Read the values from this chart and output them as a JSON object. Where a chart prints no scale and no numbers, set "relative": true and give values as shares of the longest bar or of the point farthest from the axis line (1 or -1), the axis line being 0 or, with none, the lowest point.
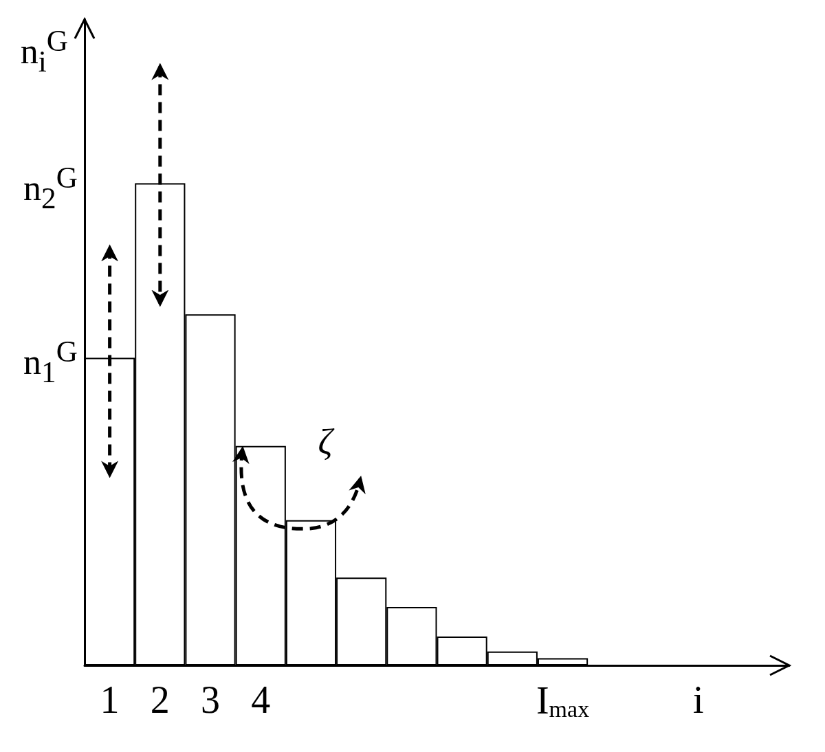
{
  "chart_data": {
    "type": "bar",
    "relative": true,
    "xlabel": "i",
    "ylabel": "n$_{i}$$^{G}$",
    "categories": [
      "1",
      "2",
      "3",
      "4",
      null,
      null,
      null,
      null,
      null,
      "I$_{max}$"
    ],
    "values": [
      0.638,
      1,
      0.728,
      0.455,
      0.301,
      0.182,
      0.121,
      0.06,
      0.029,
      0.015
    ],
    "color": "#ffffff",
    "annotations": [
      "n$_{1}$$^{G}$",
      "n$_{2}$$^{G}$",
      "ζ"
    ]
  }
}
